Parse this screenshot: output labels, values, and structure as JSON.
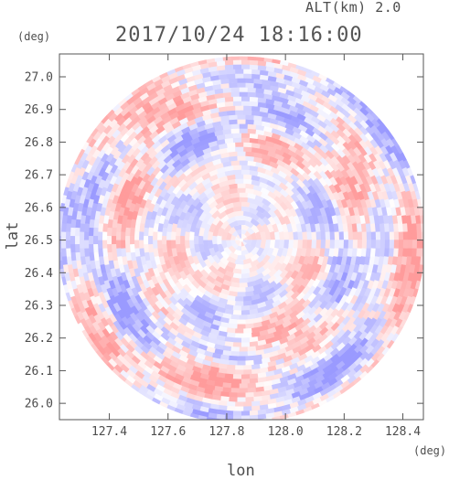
{
  "header": {
    "altitude_label": "ALT(km) 2.0",
    "time_label": "2017/10/24 18:16:00"
  },
  "chart_data": {
    "type": "heatmap",
    "title": "2017/10/24 18:16:00",
    "subtitle": "ALT(km) 2.0",
    "xlabel": "lon",
    "ylabel": "lat",
    "x_unit": "(deg)",
    "y_unit": "(deg)",
    "xlim": [
      127.23,
      128.47
    ],
    "ylim": [
      25.95,
      27.07
    ],
    "x_ticks": [
      "127.4",
      "127.6",
      "127.8",
      "128.0",
      "128.2",
      "128.4"
    ],
    "y_ticks": [
      "26.0",
      "26.1",
      "26.2",
      "26.3",
      "26.4",
      "26.5",
      "26.6",
      "26.7",
      "26.8",
      "26.9",
      "27.0"
    ],
    "radar_center": {
      "lon": 127.85,
      "lat": 26.5
    },
    "colormap": {
      "negative": "#8f8fff",
      "zero": "#ffffff",
      "positive": "#ff9090"
    },
    "grid": false
  }
}
